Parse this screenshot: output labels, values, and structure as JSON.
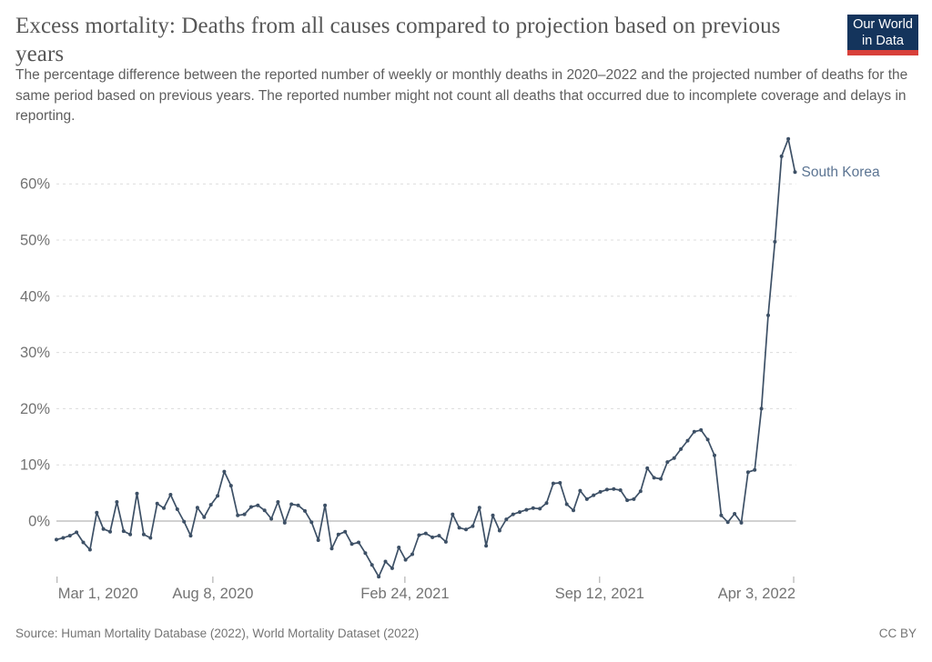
{
  "header": {
    "title": "Excess mortality: Deaths from all causes compared to projection based on previous years",
    "subtitle": "The percentage difference between the reported number of weekly or monthly deaths in 2020–2022 and the projected number of deaths for the same period based on previous years. The reported number might not count all deaths that occurred due to incomplete coverage and delays in reporting.",
    "logo": {
      "line1": "Our World",
      "line2": "in Data",
      "bg_color": "#14345c",
      "accent_color": "#d8403a"
    }
  },
  "chart_data": {
    "type": "line",
    "title": "Excess mortality: Deaths from all causes compared to projection based on previous years",
    "x_unit": "week",
    "x_start": "Mar 1, 2020",
    "x_end": "Apr 3, 2022",
    "x_ticks": [
      {
        "label": "Mar 1, 2020",
        "t": 0.1,
        "align": "start"
      },
      {
        "label": "Aug 8, 2020",
        "t": 23.3,
        "align": "middle"
      },
      {
        "label": "Feb 24, 2021",
        "t": 51.9,
        "align": "middle"
      },
      {
        "label": "Sep 12, 2021",
        "t": 80.9,
        "align": "middle"
      },
      {
        "label": "Apr 3, 2022",
        "t": 109.8,
        "align": "end"
      }
    ],
    "y_ticks": [
      0,
      10,
      20,
      30,
      40,
      50,
      60
    ],
    "y_tick_labels": [
      "0%",
      "10%",
      "20%",
      "30%",
      "40%",
      "50%",
      "60%"
    ],
    "y_suffix": "%",
    "ylim": [
      -11,
      69
    ],
    "grid": "dashed horizontal gridlines, solid zero line",
    "legend_position": "end-of-line label",
    "series": [
      {
        "name": "South Korea",
        "color": "#3d5066",
        "label_color": "#5b7492",
        "values": [
          -3.3,
          -3.0,
          -2.6,
          -2.0,
          -3.8,
          -5.1,
          1.5,
          -1.4,
          -1.9,
          3.4,
          -1.8,
          -2.4,
          4.9,
          -2.4,
          -3.0,
          3.1,
          2.3,
          4.7,
          2.1,
          -0.1,
          -2.6,
          2.4,
          0.7,
          2.9,
          4.5,
          8.8,
          6.3,
          1.0,
          1.2,
          2.5,
          2.8,
          1.9,
          0.4,
          3.4,
          -0.3,
          3.0,
          2.8,
          1.8,
          -0.2,
          -3.4,
          2.8,
          -4.9,
          -2.4,
          -1.9,
          -4.1,
          -3.8,
          -5.7,
          -7.8,
          -9.9,
          -7.2,
          -8.4,
          -4.7,
          -6.9,
          -5.9,
          -2.5,
          -2.2,
          -2.9,
          -2.6,
          -3.7,
          1.2,
          -1.2,
          -1.5,
          -0.9,
          2.4,
          -4.4,
          1.0,
          -1.7,
          0.3,
          1.2,
          1.6,
          2.0,
          2.3,
          2.2,
          3.2,
          6.7,
          6.8,
          3.0,
          1.9,
          5.4,
          3.9,
          4.6,
          5.2,
          5.6,
          5.7,
          5.5,
          3.7,
          3.9,
          5.3,
          9.4,
          7.7,
          7.5,
          10.5,
          11.2,
          12.8,
          14.3,
          15.9,
          16.2,
          14.5,
          11.7,
          1.0,
          -0.2,
          1.3,
          -0.3,
          8.7,
          9.1,
          20.0,
          36.6,
          49.7,
          64.9,
          68.0,
          62.1
        ]
      }
    ],
    "colors": {
      "gridline": "#dcdcdc",
      "zero_line": "#a3a3a3",
      "tick_text": "#737373",
      "axis_tick": "#a3a3a3"
    }
  },
  "footer": {
    "source": "Source: Human Mortality Database (2022), World Mortality Dataset (2022)",
    "license": "CC BY"
  }
}
